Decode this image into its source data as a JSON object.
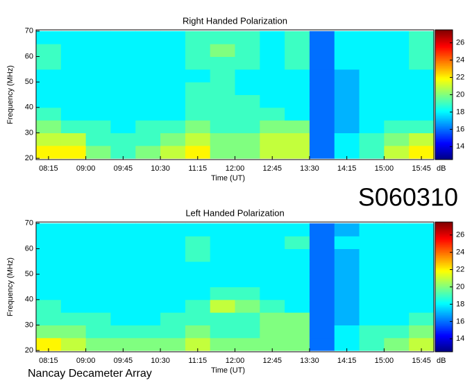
{
  "label": "S060310",
  "footer": "Nancay Decameter Array",
  "chart_data": [
    {
      "type": "heatmap",
      "title": "Right Handed Polarization",
      "xlabel": "Time (UT)",
      "ylabel": "Frequency (MHz)",
      "x": [
        495,
        525,
        555,
        585,
        615,
        645,
        675,
        705,
        735,
        765,
        795,
        825,
        855,
        885,
        915,
        945
      ],
      "y": [
        22.5,
        27.5,
        32.5,
        37.5,
        42.5,
        47.5,
        52.5,
        57.5,
        62.5,
        67.5
      ],
      "values": [
        [
          22,
          22,
          20,
          19,
          20,
          21,
          22,
          20,
          20,
          21,
          21,
          16,
          18,
          19,
          21,
          22
        ],
        [
          21,
          21,
          19,
          19,
          19,
          20,
          21,
          20,
          20,
          21,
          21,
          16,
          18,
          19,
          20,
          21
        ],
        [
          20,
          19,
          19,
          18,
          19,
          19,
          20,
          19,
          19,
          20,
          20,
          16,
          17,
          18,
          19,
          19
        ],
        [
          19,
          18,
          18,
          18,
          18,
          18,
          19,
          19,
          19,
          19,
          18,
          16,
          17,
          18,
          18,
          18
        ],
        [
          18,
          18,
          18,
          18,
          18,
          18,
          19,
          19,
          19,
          18,
          18,
          16,
          17,
          18,
          18,
          18
        ],
        [
          18,
          18,
          18,
          18,
          18,
          18,
          19,
          19,
          18,
          18,
          18,
          16,
          17,
          18,
          18,
          18
        ],
        [
          18,
          18,
          18,
          18,
          18,
          18,
          18,
          19,
          18,
          18,
          18,
          16,
          17,
          18,
          18,
          18
        ],
        [
          19,
          18,
          18,
          18,
          18,
          18,
          19,
          19,
          19,
          18,
          19,
          16,
          18,
          18,
          18,
          19
        ],
        [
          19,
          18,
          18,
          18,
          18,
          18,
          19,
          20,
          19,
          18,
          19,
          16,
          18,
          18,
          18,
          19
        ],
        [
          18,
          18,
          18,
          18,
          18,
          18,
          19,
          19,
          19,
          18,
          19,
          16,
          18,
          18,
          18,
          19
        ]
      ],
      "xlim": [
        480,
        960
      ],
      "ylim": [
        19.5,
        70.5
      ],
      "xticks": [
        {
          "value": 495,
          "label": "08:15"
        },
        {
          "value": 540,
          "label": "09:00"
        },
        {
          "value": 585,
          "label": "09:45"
        },
        {
          "value": 630,
          "label": "10:30"
        },
        {
          "value": 675,
          "label": "11:15"
        },
        {
          "value": 720,
          "label": "12:00"
        },
        {
          "value": 765,
          "label": "12:45"
        },
        {
          "value": 810,
          "label": "13:30"
        },
        {
          "value": 855,
          "label": "14:15"
        },
        {
          "value": 900,
          "label": "15:00"
        },
        {
          "value": 945,
          "label": "15:45"
        }
      ],
      "yticks": [
        20,
        30,
        40,
        50,
        60,
        70
      ],
      "zlim": [
        12.5,
        27.5
      ],
      "zticks": [
        14,
        16,
        18,
        20,
        22,
        24,
        26
      ],
      "zlabel": "dB",
      "colormap": "jet"
    },
    {
      "type": "heatmap",
      "title": "Left Handed Polarization",
      "xlabel": "Time (UT)",
      "ylabel": "Frequency (MHz)",
      "x": [
        495,
        525,
        555,
        585,
        615,
        645,
        675,
        705,
        735,
        765,
        795,
        825,
        855,
        885,
        915,
        945
      ],
      "y": [
        22.5,
        27.5,
        32.5,
        37.5,
        42.5,
        47.5,
        52.5,
        57.5,
        62.5,
        67.5
      ],
      "values": [
        [
          22,
          21,
          20,
          20,
          20,
          20,
          21,
          20,
          20,
          20,
          20,
          16,
          18,
          19,
          20,
          21
        ],
        [
          20,
          20,
          19,
          19,
          19,
          19,
          20,
          19,
          19,
          20,
          20,
          16,
          18,
          19,
          19,
          20
        ],
        [
          19,
          19,
          19,
          18,
          18,
          19,
          19,
          19,
          19,
          20,
          20,
          16,
          17,
          18,
          18,
          19
        ],
        [
          19,
          18,
          18,
          18,
          18,
          18,
          19,
          21,
          20,
          19,
          18,
          16,
          17,
          18,
          18,
          18
        ],
        [
          18,
          18,
          18,
          18,
          18,
          18,
          18,
          19,
          19,
          18,
          18,
          16,
          17,
          18,
          18,
          18
        ],
        [
          18,
          18,
          18,
          18,
          18,
          18,
          18,
          18,
          18,
          18,
          18,
          16,
          17,
          18,
          18,
          18
        ],
        [
          18,
          18,
          18,
          18,
          18,
          18,
          18,
          18,
          18,
          18,
          18,
          16,
          17,
          18,
          18,
          18
        ],
        [
          18,
          18,
          18,
          18,
          18,
          18,
          19,
          18,
          18,
          18,
          18,
          16,
          17,
          18,
          18,
          18
        ],
        [
          18,
          18,
          18,
          18,
          18,
          18,
          19,
          18,
          18,
          18,
          19,
          16,
          18,
          18,
          18,
          18
        ],
        [
          18,
          18,
          18,
          18,
          18,
          18,
          18,
          18,
          18,
          18,
          18,
          16,
          17,
          18,
          18,
          18
        ]
      ],
      "xlim": [
        480,
        960
      ],
      "ylim": [
        19.5,
        70.5
      ],
      "xticks": [
        {
          "value": 495,
          "label": "08:15"
        },
        {
          "value": 540,
          "label": "09:00"
        },
        {
          "value": 585,
          "label": "09:45"
        },
        {
          "value": 630,
          "label": "10:30"
        },
        {
          "value": 675,
          "label": "11:15"
        },
        {
          "value": 720,
          "label": "12:00"
        },
        {
          "value": 765,
          "label": "12:45"
        },
        {
          "value": 810,
          "label": "13:30"
        },
        {
          "value": 855,
          "label": "14:15"
        },
        {
          "value": 900,
          "label": "15:00"
        },
        {
          "value": 945,
          "label": "15:45"
        }
      ],
      "yticks": [
        20,
        30,
        40,
        50,
        60,
        70
      ],
      "zlim": [
        12.5,
        27.5
      ],
      "zticks": [
        14,
        16,
        18,
        20,
        22,
        24,
        26
      ],
      "zlabel": "dB",
      "colormap": "jet"
    }
  ]
}
